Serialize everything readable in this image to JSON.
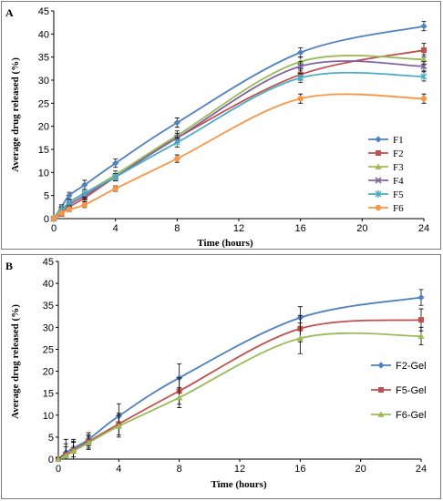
{
  "chart_data": [
    {
      "panel_label": "A",
      "type": "line",
      "xlabel": "Time (hours)",
      "ylabel": "Average drug released (%)",
      "xlim": [
        0,
        24
      ],
      "ylim": [
        0,
        45
      ],
      "xticks": [
        0,
        4,
        8,
        12,
        16,
        20,
        24
      ],
      "yticks": [
        0,
        5,
        10,
        15,
        20,
        25,
        30,
        35,
        40,
        45
      ],
      "grid": false,
      "legend_position": "right",
      "x": [
        0,
        0.5,
        1,
        2,
        4,
        8,
        16,
        24
      ],
      "series": [
        {
          "name": "F1",
          "color": "#4f81bd",
          "marker": "diamond",
          "values": [
            0,
            2.5,
            5.0,
            7.3,
            12.0,
            20.8,
            36.0,
            41.7
          ],
          "errors": [
            0.2,
            0.5,
            0.7,
            1.0,
            0.9,
            1.0,
            1.0,
            1.0
          ]
        },
        {
          "name": "F2",
          "color": "#c0504d",
          "marker": "square",
          "values": [
            0,
            1.0,
            2.5,
            4.5,
            9.0,
            17.5,
            31.2,
            36.5
          ],
          "errors": [
            0.2,
            0.4,
            0.6,
            0.8,
            0.8,
            1.0,
            1.2,
            1.5
          ]
        },
        {
          "name": "F3",
          "color": "#9bbb59",
          "marker": "triangle",
          "values": [
            0,
            2.0,
            3.5,
            5.5,
            9.5,
            18.0,
            34.0,
            34.5
          ],
          "errors": [
            0.2,
            0.4,
            0.6,
            0.8,
            0.8,
            1.0,
            1.0,
            1.0
          ]
        },
        {
          "name": "F4",
          "color": "#8064a2",
          "marker": "x",
          "values": [
            0,
            1.5,
            3.0,
            5.0,
            9.0,
            17.5,
            33.0,
            33.0
          ],
          "errors": [
            0.2,
            0.4,
            0.6,
            0.8,
            0.8,
            1.0,
            1.0,
            1.0
          ]
        },
        {
          "name": "F5",
          "color": "#4bacc6",
          "marker": "star",
          "values": [
            0,
            1.5,
            3.5,
            5.5,
            9.0,
            16.5,
            30.5,
            30.8
          ],
          "errors": [
            0.2,
            0.4,
            0.6,
            0.8,
            0.8,
            1.0,
            1.0,
            1.0
          ]
        },
        {
          "name": "F6",
          "color": "#f79646",
          "marker": "circle",
          "values": [
            0,
            1.2,
            2.0,
            3.0,
            6.5,
            13.0,
            26.0,
            26.0
          ],
          "errors": [
            0.2,
            0.4,
            0.5,
            0.6,
            0.6,
            0.8,
            1.0,
            1.0
          ]
        }
      ]
    },
    {
      "panel_label": "B",
      "type": "line",
      "xlabel": "Time (hours)",
      "ylabel": "Average drug released (%)",
      "xlim": [
        0,
        24
      ],
      "ylim": [
        0,
        45
      ],
      "xticks": [
        0,
        4,
        8,
        12,
        16,
        20,
        24
      ],
      "yticks": [
        0,
        5,
        10,
        15,
        20,
        25,
        30,
        35,
        40,
        45
      ],
      "grid": false,
      "legend_position": "right",
      "x": [
        0,
        0.5,
        1,
        2,
        4,
        8,
        16,
        24
      ],
      "series": [
        {
          "name": "F2-Gel",
          "color": "#4f81bd",
          "marker": "diamond",
          "values": [
            0,
            1.5,
            2.5,
            4.5,
            9.8,
            18.5,
            32.2,
            36.8
          ],
          "errors": [
            0.3,
            3.0,
            2.0,
            1.5,
            2.8,
            3.2,
            2.5,
            1.8
          ]
        },
        {
          "name": "F5-Gel",
          "color": "#c0504d",
          "marker": "square",
          "values": [
            0,
            1.0,
            2.0,
            4.0,
            8.0,
            15.5,
            29.7,
            31.7
          ],
          "errors": [
            0.3,
            2.5,
            2.0,
            1.5,
            2.5,
            3.0,
            3.0,
            2.5
          ]
        },
        {
          "name": "F6-Gel",
          "color": "#9bbb59",
          "marker": "triangle",
          "values": [
            0,
            0.8,
            1.8,
            3.7,
            7.5,
            14.0,
            27.5,
            28.0
          ],
          "errors": [
            0.3,
            2.0,
            2.0,
            1.5,
            2.5,
            2.3,
            3.5,
            2.0
          ]
        }
      ]
    }
  ]
}
